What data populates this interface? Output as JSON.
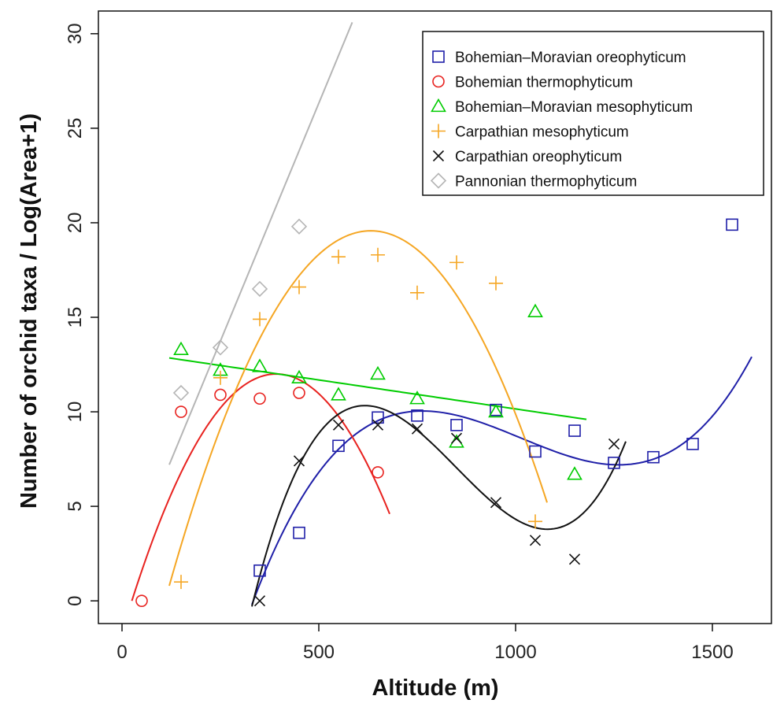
{
  "chart_data": {
    "type": "scatter",
    "xlabel": "Altitude (m)",
    "ylabel": "Number of orchid taxa / Log(Area+1)",
    "xlim": [
      -60,
      1650
    ],
    "ylim": [
      -1.2,
      31.2
    ],
    "x_ticks": [
      0,
      500,
      1000,
      1500
    ],
    "y_ticks": [
      0,
      5,
      10,
      15,
      20,
      25,
      30
    ],
    "grid": false,
    "legend_position": "top-right",
    "series": [
      {
        "name": "Bohemian–Moravian oreophyticum",
        "color": "#1f1fa8",
        "marker": "square",
        "points": [
          [
            350,
            1.6
          ],
          [
            450,
            3.6
          ],
          [
            550,
            8.2
          ],
          [
            650,
            9.7
          ],
          [
            750,
            9.8
          ],
          [
            850,
            9.3
          ],
          [
            950,
            10.1
          ],
          [
            1050,
            7.9
          ],
          [
            1150,
            9.0
          ],
          [
            1250,
            7.3
          ],
          [
            1350,
            7.6
          ],
          [
            1450,
            8.3
          ],
          [
            1550,
            19.9
          ]
        ],
        "fit": {
          "kind": "cubic",
          "from": 330,
          "to": 1600,
          "knots": [
            [
              330,
              -0.2
            ],
            [
              500,
              6.8
            ],
            [
              800,
              10.0
            ],
            [
              1250,
              7.2
            ]
          ]
        }
      },
      {
        "name": "Bohemian thermophyticum",
        "color": "#e8221f",
        "marker": "circle",
        "points": [
          [
            50,
            0.0
          ],
          [
            150,
            10.0
          ],
          [
            250,
            10.9
          ],
          [
            350,
            10.7
          ],
          [
            450,
            11.0
          ],
          [
            650,
            6.8
          ]
        ],
        "fit": {
          "kind": "quadratic",
          "from": 25,
          "to": 680,
          "knots": [
            [
              25,
              0.0
            ],
            [
              390,
              12.0
            ],
            [
              680,
              4.6
            ]
          ]
        }
      },
      {
        "name": "Bohemian–Moravian mesophyticum",
        "color": "#00cc00",
        "marker": "triangle",
        "points": [
          [
            150,
            13.3
          ],
          [
            250,
            12.2
          ],
          [
            350,
            12.4
          ],
          [
            450,
            11.8
          ],
          [
            550,
            10.9
          ],
          [
            650,
            12.0
          ],
          [
            750,
            10.7
          ],
          [
            850,
            8.4
          ],
          [
            950,
            10.0
          ],
          [
            1050,
            15.3
          ],
          [
            1150,
            6.7
          ]
        ],
        "fit": {
          "kind": "linear",
          "from": 120,
          "to": 1180,
          "knots": [
            [
              120,
              12.85
            ],
            [
              1180,
              9.6
            ]
          ]
        }
      },
      {
        "name": "Carpathian mesophyticum",
        "color": "#f5a623",
        "marker": "plus",
        "points": [
          [
            150,
            1.0
          ],
          [
            250,
            11.8
          ],
          [
            350,
            14.9
          ],
          [
            450,
            16.6
          ],
          [
            550,
            18.2
          ],
          [
            650,
            18.3
          ],
          [
            750,
            16.3
          ],
          [
            850,
            17.9
          ],
          [
            950,
            16.8
          ],
          [
            1050,
            4.2
          ]
        ],
        "fit": {
          "kind": "quadratic",
          "from": 120,
          "to": 1080,
          "knots": [
            [
              120,
              0.8
            ],
            [
              600,
              19.5
            ],
            [
              1080,
              5.2
            ]
          ]
        }
      },
      {
        "name": "Carpathian oreophyticum",
        "color": "#111111",
        "marker": "cross",
        "points": [
          [
            350,
            0.0
          ],
          [
            450,
            7.4
          ],
          [
            550,
            9.3
          ],
          [
            650,
            9.3
          ],
          [
            750,
            9.1
          ],
          [
            850,
            8.6
          ],
          [
            950,
            5.2
          ],
          [
            1050,
            3.2
          ],
          [
            1150,
            2.2
          ],
          [
            1250,
            8.3
          ]
        ],
        "fit": {
          "kind": "cubic",
          "from": 330,
          "to": 1280,
          "knots": [
            [
              330,
              -0.3
            ],
            [
              600,
              10.3
            ],
            [
              900,
              6.0
            ],
            [
              1200,
              5.3
            ]
          ]
        }
      },
      {
        "name": "Pannonian thermophyticum",
        "color": "#b5b5b5",
        "marker": "diamond",
        "points": [
          [
            150,
            11.0
          ],
          [
            250,
            13.4
          ],
          [
            350,
            16.5
          ],
          [
            450,
            19.8
          ]
        ],
        "fit": {
          "kind": "linear",
          "from": 120,
          "to": 585,
          "knots": [
            [
              120,
              7.2
            ],
            [
              585,
              30.6
            ]
          ]
        }
      }
    ]
  }
}
